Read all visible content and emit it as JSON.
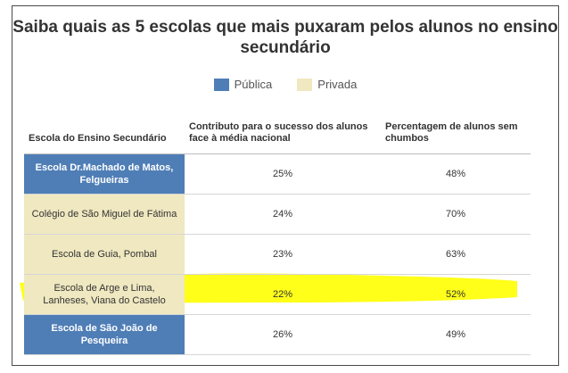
{
  "title": "Saiba quais as 5 escolas que mais puxaram pelos alunos no ensino secundário",
  "legend": {
    "items": [
      {
        "label": "Pública",
        "color": "#4f7eb6"
      },
      {
        "label": "Privada",
        "color": "#efe8c0"
      }
    ]
  },
  "colors": {
    "publica": "#4f7eb6",
    "privada": "#efe8c0",
    "highlight": "#ffff00"
  },
  "chart_data": {
    "type": "table",
    "title": "Saiba quais as 5 escolas que mais puxaram pelos alunos no ensino secundário",
    "columns": [
      "Escola do Ensino Secundário",
      "Contributo para o sucesso dos alunos face à média nacional",
      "Percentagem de alunos sem chumbos"
    ],
    "rows": [
      {
        "school": "Escola Dr.Machado de Matos, Felgueiras",
        "type": "Pública",
        "contributo": "25%",
        "percentagem": "48%"
      },
      {
        "school": "Colégio de São Miguel de Fátima",
        "type": "Privada",
        "contributo": "24%",
        "percentagem": "70%"
      },
      {
        "school": "Escola de Guia, Pombal",
        "type": "Privada",
        "contributo": "23%",
        "percentagem": "63%"
      },
      {
        "school": "Escola de Arge e Lima, Lanheses, Viana do Castelo",
        "type": "Privada",
        "contributo": "22%",
        "percentagem": "52%"
      },
      {
        "school": "Escola de São João de Pesqueira",
        "type": "Pública",
        "contributo": "26%",
        "percentagem": "49%"
      }
    ]
  }
}
